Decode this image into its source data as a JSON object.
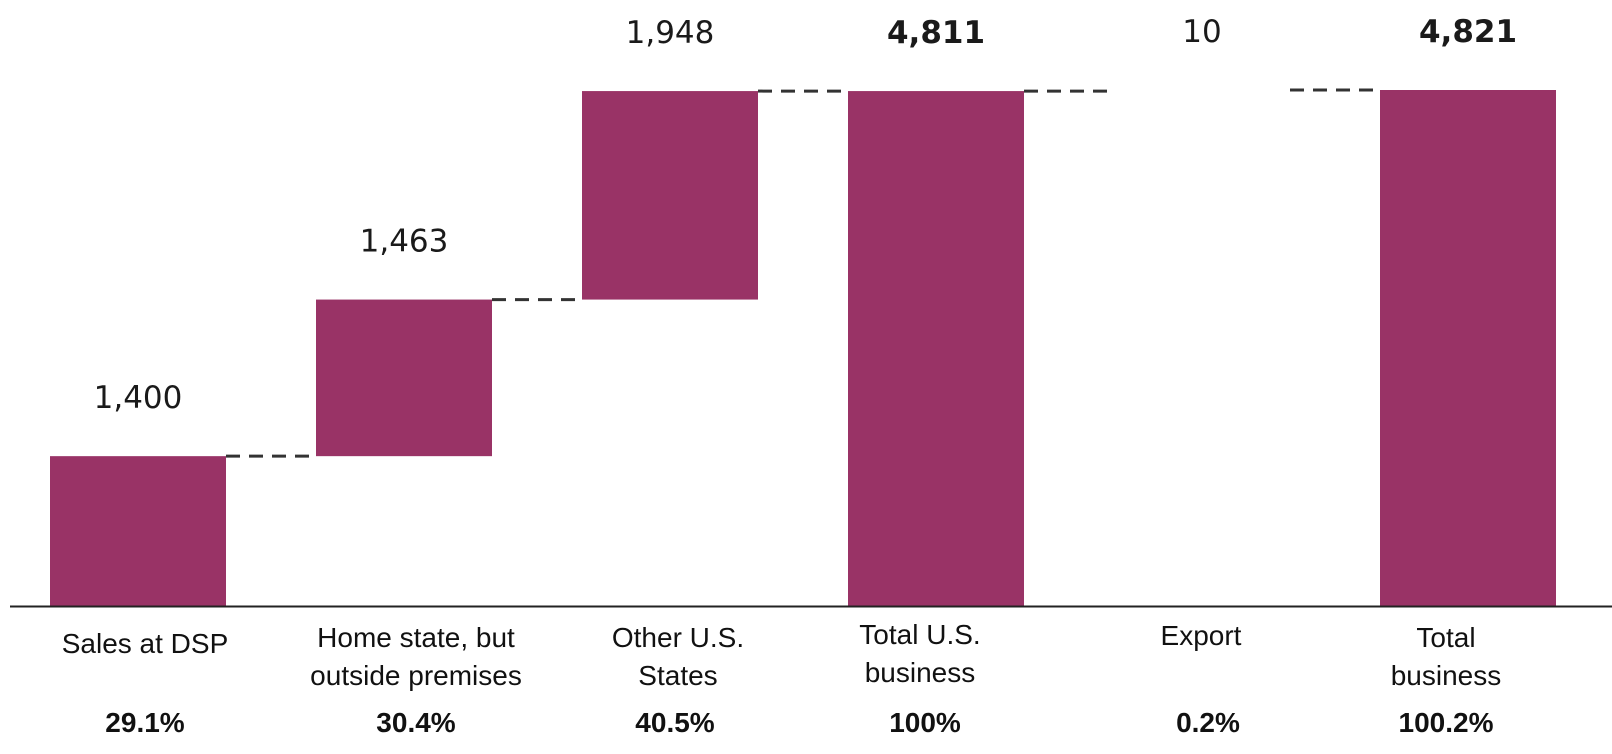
{
  "chart_data": {
    "type": "bar",
    "subtype": "waterfall",
    "title": "",
    "xlabel": "",
    "ylabel": "",
    "ylim": [
      0,
      4821
    ],
    "grid": false,
    "legend": "none",
    "bar_color": "#993366",
    "connector_style": "dashed",
    "categories": [
      "Sales at DSP",
      "Home state, but outside premises",
      "Other U.S. States",
      "Total U.S. business",
      "Export",
      "Total business"
    ],
    "category_label_lines": [
      [
        "Sales at DSP"
      ],
      [
        "Home state, but",
        "outside premises"
      ],
      [
        "Other U.S.",
        "States"
      ],
      [
        "Total U.S.",
        "business"
      ],
      [
        "Export"
      ],
      [
        "Total",
        "business"
      ]
    ],
    "values": [
      1400,
      1463,
      1948,
      4811,
      10,
      4821
    ],
    "value_labels": [
      "1,400",
      "1,463",
      "1,948",
      "4,811",
      "10",
      "4,821"
    ],
    "is_total": [
      false,
      false,
      false,
      true,
      false,
      true
    ],
    "percent_labels": [
      "29.1%",
      "30.4%",
      "40.5%",
      "100%",
      "0.2%",
      "100.2%"
    ]
  }
}
